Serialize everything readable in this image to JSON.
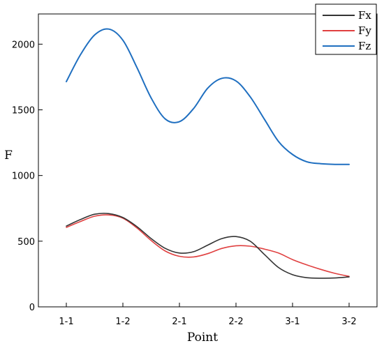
{
  "chart_data": {
    "type": "line",
    "title": "",
    "xlabel": "Point",
    "ylabel": "F",
    "categories": [
      "1-1",
      "1-2",
      "2-1",
      "2-2",
      "3-1",
      "3-2"
    ],
    "y_ticks": [
      0,
      500,
      1000,
      1500,
      2000
    ],
    "ylim": [
      0,
      2230
    ],
    "grid": false,
    "legend_position": "top-right",
    "series": [
      {
        "name": "Fx",
        "color": "#333333",
        "x": [
          1,
          1.25,
          1.5,
          1.75,
          2,
          2.25,
          2.5,
          2.75,
          3,
          3.25,
          3.5,
          3.75,
          4,
          4.25,
          4.5,
          4.75,
          5,
          5.25,
          5.5,
          5.75,
          6
        ],
        "values": [
          615,
          665,
          705,
          710,
          680,
          610,
          520,
          445,
          410,
          420,
          470,
          520,
          535,
          500,
          400,
          300,
          245,
          222,
          218,
          220,
          228
        ]
      },
      {
        "name": "Fy",
        "color": "#e04040",
        "x": [
          1,
          1.25,
          1.5,
          1.75,
          2,
          2.25,
          2.5,
          2.75,
          3,
          3.25,
          3.5,
          3.75,
          4,
          4.25,
          4.5,
          4.75,
          5,
          5.25,
          5.5,
          5.75,
          6
        ],
        "values": [
          605,
          650,
          690,
          700,
          675,
          600,
          505,
          425,
          385,
          380,
          405,
          445,
          465,
          462,
          440,
          410,
          360,
          320,
          285,
          255,
          232
        ]
      },
      {
        "name": "Fz",
        "color": "#1f6fc0",
        "x": [
          1,
          1.25,
          1.5,
          1.75,
          2,
          2.25,
          2.5,
          2.75,
          3,
          3.25,
          3.5,
          3.75,
          4,
          4.25,
          4.5,
          4.75,
          5,
          5.25,
          5.5,
          5.75,
          6
        ],
        "values": [
          1715,
          1920,
          2070,
          2115,
          2030,
          1820,
          1590,
          1430,
          1410,
          1510,
          1665,
          1740,
          1720,
          1600,
          1430,
          1260,
          1160,
          1105,
          1090,
          1085,
          1085
        ]
      }
    ]
  }
}
